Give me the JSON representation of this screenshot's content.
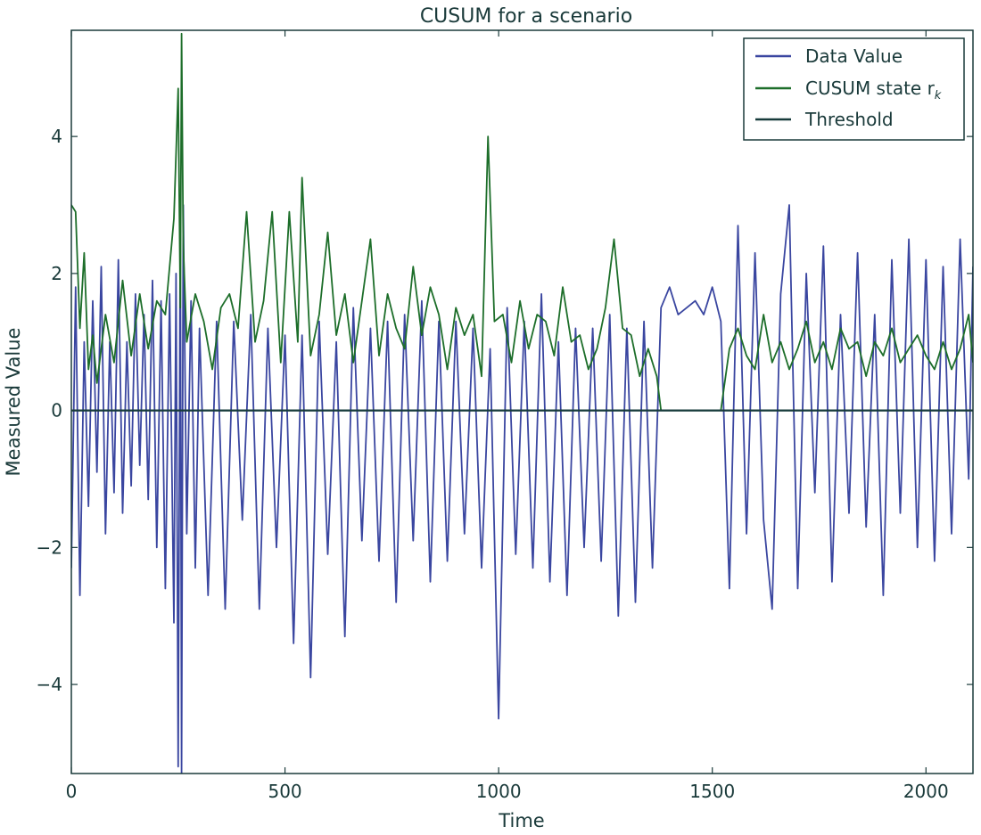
{
  "chart_data": {
    "type": "line",
    "title": "CUSUM for a scenario",
    "xlabel": "Time",
    "ylabel": "Measured Value",
    "xlim": [
      0,
      2110
    ],
    "ylim": [
      -5.3,
      5.55
    ],
    "xticks": [
      0,
      500,
      1000,
      1500,
      2000
    ],
    "yticks": [
      -4,
      -2,
      0,
      2,
      4
    ],
    "xtick_labels": [
      "0",
      "500",
      "1000",
      "1500",
      "2000"
    ],
    "ytick_labels": [
      "−4",
      "−2",
      "0",
      "2",
      "4"
    ],
    "grid": false,
    "legend_position": "top-right",
    "series": [
      {
        "name": "Data Value",
        "color": "#3a46a0",
        "x": [
          0,
          10,
          20,
          30,
          40,
          50,
          60,
          70,
          80,
          90,
          100,
          110,
          120,
          130,
          140,
          150,
          160,
          170,
          180,
          190,
          200,
          210,
          220,
          230,
          240,
          245,
          250,
          255,
          258,
          262,
          270,
          280,
          290,
          300,
          320,
          340,
          360,
          380,
          400,
          420,
          440,
          460,
          480,
          500,
          520,
          540,
          560,
          580,
          600,
          620,
          640,
          660,
          680,
          700,
          720,
          740,
          760,
          780,
          800,
          820,
          840,
          860,
          880,
          900,
          920,
          940,
          960,
          980,
          1000,
          1020,
          1040,
          1060,
          1080,
          1100,
          1120,
          1140,
          1160,
          1180,
          1200,
          1220,
          1240,
          1260,
          1280,
          1300,
          1320,
          1340,
          1360,
          1380,
          1400,
          1420,
          1440,
          1460,
          1480,
          1500,
          1520,
          1540,
          1560,
          1580,
          1600,
          1620,
          1640,
          1660,
          1680,
          1700,
          1720,
          1740,
          1760,
          1780,
          1800,
          1820,
          1840,
          1860,
          1880,
          1900,
          1920,
          1940,
          1960,
          1980,
          2000,
          2020,
          2040,
          2060,
          2080,
          2100,
          2110
        ],
        "y": [
          -2.3,
          1.8,
          -2.7,
          1.0,
          -1.4,
          1.6,
          -0.9,
          2.1,
          -1.8,
          1.0,
          -1.2,
          2.2,
          -1.5,
          1.0,
          -1.1,
          1.7,
          -0.8,
          1.4,
          -1.3,
          1.9,
          -2.0,
          1.6,
          -2.6,
          1.7,
          -3.1,
          2.0,
          -5.2,
          2.9,
          -5.3,
          3.0,
          -1.8,
          1.6,
          -2.3,
          1.2,
          -2.7,
          1.3,
          -2.9,
          1.3,
          -1.6,
          1.4,
          -2.9,
          1.2,
          -2.0,
          1.1,
          -3.4,
          1.1,
          -3.9,
          1.3,
          -2.1,
          1.0,
          -3.3,
          1.5,
          -1.9,
          1.2,
          -2.2,
          1.3,
          -2.8,
          1.4,
          -1.9,
          1.6,
          -2.5,
          1.3,
          -2.2,
          1.3,
          -1.8,
          1.2,
          -2.3,
          0.9,
          -4.5,
          1.5,
          -2.1,
          1.3,
          -2.3,
          1.7,
          -2.5,
          1.0,
          -2.7,
          1.2,
          -2.0,
          1.2,
          -2.2,
          1.4,
          -3.0,
          1.2,
          -2.8,
          1.3,
          -2.3,
          1.5,
          1.8,
          1.4,
          1.5,
          1.6,
          1.4,
          1.8,
          1.3,
          -2.6,
          2.7,
          -1.8,
          2.3,
          -1.6,
          -2.9,
          1.7,
          3.0,
          -2.6,
          2.0,
          -1.2,
          2.4,
          -2.5,
          1.4,
          -1.5,
          2.3,
          -1.7,
          1.4,
          -2.7,
          2.2,
          -1.5,
          2.5,
          -2.0,
          2.2,
          -2.2,
          2.1,
          -1.8,
          2.5,
          -1.0,
          2.1
        ]
      },
      {
        "name": "CUSUM state r_k",
        "color": "#1d6e2a",
        "x": [
          0,
          10,
          20,
          30,
          40,
          50,
          60,
          80,
          100,
          120,
          140,
          160,
          180,
          200,
          220,
          240,
          250,
          255,
          258,
          262,
          270,
          290,
          310,
          330,
          350,
          370,
          390,
          410,
          430,
          450,
          470,
          490,
          510,
          530,
          540,
          560,
          580,
          600,
          620,
          640,
          660,
          680,
          700,
          720,
          740,
          760,
          780,
          800,
          820,
          840,
          860,
          880,
          900,
          920,
          940,
          960,
          975,
          990,
          1010,
          1030,
          1050,
          1070,
          1090,
          1110,
          1130,
          1150,
          1170,
          1190,
          1210,
          1230,
          1250,
          1270,
          1290,
          1310,
          1330,
          1350,
          1370,
          1380,
          1420,
          1460,
          1500,
          1520,
          1540,
          1560,
          1580,
          1600,
          1620,
          1640,
          1660,
          1680,
          1700,
          1720,
          1740,
          1760,
          1780,
          1800,
          1820,
          1840,
          1860,
          1880,
          1900,
          1920,
          1940,
          1960,
          1980,
          2000,
          2020,
          2040,
          2060,
          2080,
          2100,
          2110
        ],
        "y": [
          3.0,
          2.9,
          1.2,
          2.3,
          0.6,
          1.1,
          0.4,
          1.4,
          0.7,
          1.9,
          0.8,
          1.7,
          0.9,
          1.6,
          1.4,
          2.8,
          4.7,
          1.5,
          5.5,
          2.4,
          1.0,
          1.7,
          1.3,
          0.6,
          1.5,
          1.7,
          1.2,
          2.9,
          1.0,
          1.6,
          2.9,
          0.7,
          2.9,
          1.0,
          3.4,
          0.8,
          1.4,
          2.6,
          1.1,
          1.7,
          0.7,
          1.6,
          2.5,
          0.8,
          1.7,
          1.2,
          0.9,
          2.1,
          1.1,
          1.8,
          1.4,
          0.6,
          1.5,
          1.1,
          1.4,
          0.5,
          4.0,
          1.3,
          1.4,
          0.7,
          1.6,
          0.9,
          1.4,
          1.3,
          0.8,
          1.8,
          1.0,
          1.1,
          0.6,
          0.9,
          1.5,
          2.5,
          1.2,
          1.1,
          0.5,
          0.9,
          0.5,
          0.0,
          0.0,
          0.0,
          0.0,
          0.0,
          0.9,
          1.2,
          0.8,
          0.6,
          1.4,
          0.7,
          1.0,
          0.6,
          0.9,
          1.3,
          0.7,
          1.0,
          0.6,
          1.2,
          0.9,
          1.0,
          0.5,
          1.0,
          0.8,
          1.2,
          0.7,
          0.9,
          1.1,
          0.8,
          0.6,
          1.0,
          0.6,
          0.9,
          1.4,
          0.7
        ]
      },
      {
        "name": "Threshold",
        "color": "#173b3b",
        "x": [
          0,
          2110
        ],
        "y": [
          0,
          0
        ]
      }
    ],
    "legend": [
      "Data Value",
      "CUSUM state r",
      "Threshold"
    ],
    "legend_subscript": "k"
  }
}
